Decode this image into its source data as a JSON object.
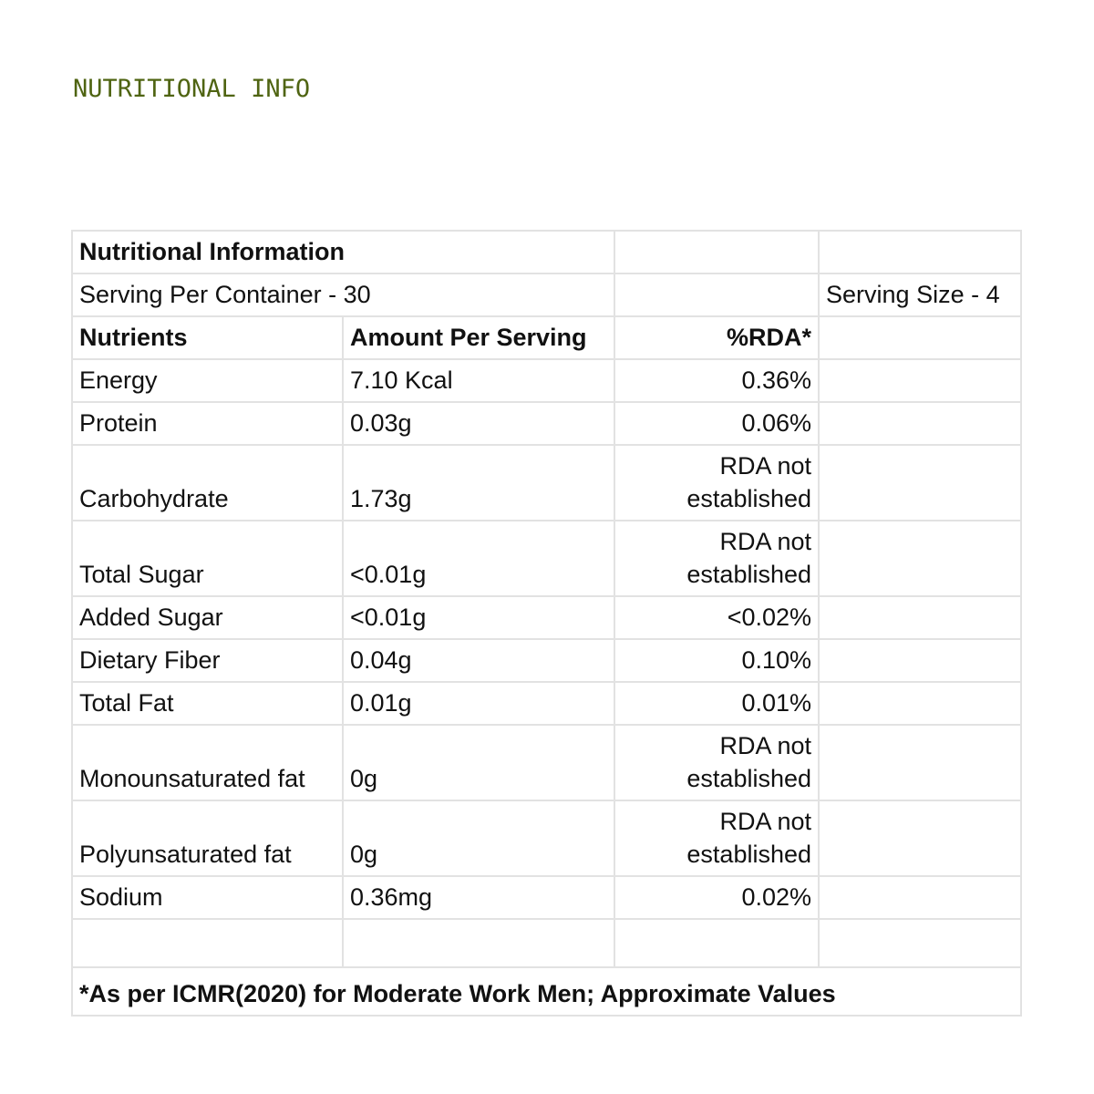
{
  "page_title": "NUTRITIONAL INFO",
  "title_color": "#4f6412",
  "table": {
    "title": "Nutritional Information",
    "serving_per_container": "Serving Per Container - 30",
    "serving_size": "Serving Size - 4",
    "headers": [
      "Nutrients",
      "Amount Per Serving",
      "%RDA*"
    ],
    "rows": [
      {
        "nutrient": "Energy",
        "amount": "7.10 Kcal",
        "rda": "0.36%"
      },
      {
        "nutrient": "Protein",
        "amount": "0.03g",
        "rda": "0.06%"
      },
      {
        "nutrient": "Carbohydrate",
        "amount": "1.73g",
        "rda": "RDA not established"
      },
      {
        "nutrient": "Total Sugar",
        "amount": "<0.01g",
        "rda": "RDA not established"
      },
      {
        "nutrient": "Added Sugar",
        "amount": "<0.01g",
        "rda": "<0.02%"
      },
      {
        "nutrient": "Dietary Fiber",
        "amount": "0.04g",
        "rda": "0.10%"
      },
      {
        "nutrient": "Total Fat",
        "amount": "0.01g",
        "rda": "0.01%"
      },
      {
        "nutrient": "Monounsaturated fat",
        "amount": "0g",
        "rda": "RDA not established"
      },
      {
        "nutrient": "Polyunsaturated fat",
        "amount": "0g",
        "rda": "RDA not established"
      },
      {
        "nutrient": "Sodium",
        "amount": "0.36mg",
        "rda": "0.02%"
      }
    ],
    "footnote": "*As per ICMR(2020) for Moderate Work Men; Approximate Values"
  }
}
